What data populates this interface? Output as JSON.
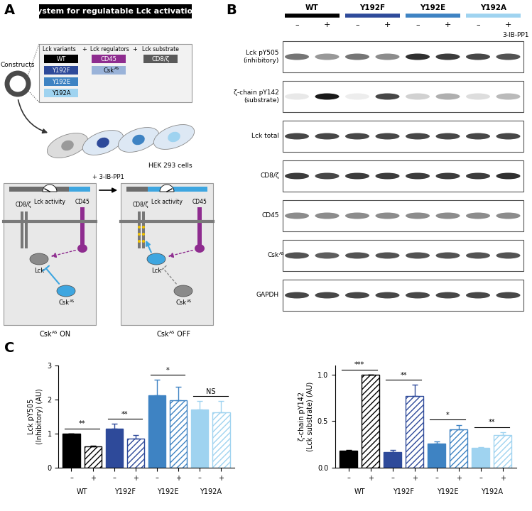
{
  "panels": {
    "A": {
      "label": "A",
      "title": "System for regulatable Lck activation",
      "constructs": "Constructs",
      "groups": [
        {
          "heading": "Lck variants",
          "joiner": "+",
          "items": [
            {
              "text": "WT",
              "color": "#000000"
            },
            {
              "text": "Y192F",
              "color": "#2e4a9a"
            },
            {
              "text": "Y192E",
              "color": "#3e83c3"
            },
            {
              "text": "Y192A",
              "color": "#9fd3f0"
            }
          ]
        },
        {
          "heading": "Lck regulators",
          "joiner": "+",
          "items": [
            {
              "text": "CD45",
              "color": "#8e2c8f"
            },
            {
              "text": {
                "text": "Csk",
                "sup": "AS"
              },
              "color": "#9ab3d9"
            }
          ]
        },
        {
          "heading": "Lck substrate",
          "items": [
            {
              "text": "CD8/ζ",
              "color": "#5a5a5a"
            }
          ]
        }
      ],
      "cells": {
        "label": "HEK 293 cells",
        "colors": [
          "#9a9a9a",
          "#2e4a9a",
          "#3e83c3",
          "#9fd3f0"
        ]
      },
      "treatment": "+ 3-IB-PP1",
      "states": [
        {
          "gauge": "Lck activity",
          "cd8": "CD8/ζ",
          "cd45": "CD45",
          "lck": "Lck",
          "csk": {
            "text": "Csk",
            "sup": "AS"
          },
          "caption": {
            "text": "Csk",
            "sup": "AS",
            "after": " ON"
          }
        },
        {
          "gauge": "Lck activity",
          "cd8": "CD8/ζ",
          "cd45": "CD45",
          "lck": "Lck",
          "csk": {
            "text": "Csk",
            "sup": "AS"
          },
          "caption": {
            "text": "Csk",
            "sup": "AS",
            "after": " OFF"
          }
        }
      ]
    },
    "B": {
      "label": "B",
      "lanes": [
        {
          "name": "WT",
          "color": "#000000"
        },
        {
          "name": "Y192F",
          "color": "#2e4a9a"
        },
        {
          "name": "Y192E",
          "color": "#3e83c3"
        },
        {
          "name": "Y192A",
          "color": "#9fd3f0"
        }
      ],
      "treatment": {
        "label": "3-IB-PP1",
        "marks": [
          "–",
          "+",
          "–",
          "+",
          "–",
          "+",
          "–",
          "+"
        ]
      },
      "rows": [
        {
          "label": "Lck pY505\n(inhibitory)",
          "bands": [
            0.6,
            0.45,
            0.6,
            0.5,
            0.9,
            0.85,
            0.8,
            0.75
          ]
        },
        {
          "label": "ζ-chain pY142\n(substrate)",
          "bands": [
            0.1,
            1.0,
            0.08,
            0.8,
            0.2,
            0.35,
            0.15,
            0.3
          ]
        },
        {
          "label": "Lck total",
          "bands": [
            0.8,
            0.8,
            0.8,
            0.8,
            0.8,
            0.8,
            0.8,
            0.8
          ]
        },
        {
          "label": "CD8/ζ",
          "bands": [
            0.85,
            0.8,
            0.85,
            0.85,
            0.85,
            0.85,
            0.85,
            0.9
          ]
        },
        {
          "label": "CD45",
          "bands": [
            0.5,
            0.5,
            0.5,
            0.5,
            0.5,
            0.5,
            0.5,
            0.5
          ]
        },
        {
          "label": {
            "text": "Csk",
            "sup": "AS"
          },
          "bands": [
            0.75,
            0.7,
            0.75,
            0.75,
            0.75,
            0.75,
            0.75,
            0.75
          ]
        },
        {
          "label": "GAPDH",
          "bands": [
            0.8,
            0.8,
            0.8,
            0.8,
            0.8,
            0.8,
            0.8,
            0.8
          ]
        }
      ]
    },
    "C": {
      "label": "C"
    }
  },
  "chart_data": [
    {
      "type": "bar",
      "ylabel": "Lck pY505\n(Inhibitory) (AU)",
      "categories": [
        "–",
        "+",
        "–",
        "+",
        "–",
        "+",
        "–",
        "+"
      ],
      "groups": [
        "WT",
        "Y192F",
        "Y192E",
        "Y192A"
      ],
      "values": [
        1.0,
        0.62,
        1.15,
        0.86,
        2.12,
        1.97,
        1.7,
        1.62
      ],
      "errors": [
        0,
        0.03,
        0.13,
        0.1,
        0.45,
        0.4,
        0.25,
        0.33
      ],
      "colors": [
        "#000000",
        "#000000",
        "#2e4a9a",
        "#2e4a9a",
        "#3e83c3",
        "#3e83c3",
        "#9fd3f0",
        "#9fd3f0"
      ],
      "significance": [
        "**",
        "**",
        "*",
        "NS"
      ],
      "ylim": [
        0,
        3
      ],
      "yticks": [
        0,
        1,
        2,
        3
      ]
    },
    {
      "type": "bar",
      "ylabel": "ζ-chain pY142\n(Lck substrate) (AU)",
      "categories": [
        "–",
        "+",
        "–",
        "+",
        "–",
        "+",
        "–",
        "+"
      ],
      "groups": [
        "WT",
        "Y192F",
        "Y192E",
        "Y192A"
      ],
      "values": [
        0.18,
        1.0,
        0.17,
        0.77,
        0.26,
        0.41,
        0.21,
        0.35
      ],
      "errors": [
        0.01,
        0,
        0.02,
        0.12,
        0.02,
        0.05,
        0.01,
        0.03
      ],
      "colors": [
        "#000000",
        "#000000",
        "#2e4a9a",
        "#2e4a9a",
        "#3e83c3",
        "#3e83c3",
        "#9fd3f0",
        "#9fd3f0"
      ],
      "significance": [
        "***",
        "**",
        "*",
        "**"
      ],
      "ylim": [
        0,
        1.1
      ],
      "yticks": [
        {
          "value": 0,
          "label": "0.0"
        },
        {
          "value": 0.5,
          "label": "0.5"
        },
        {
          "value": 1,
          "label": "1.0"
        }
      ]
    }
  ]
}
